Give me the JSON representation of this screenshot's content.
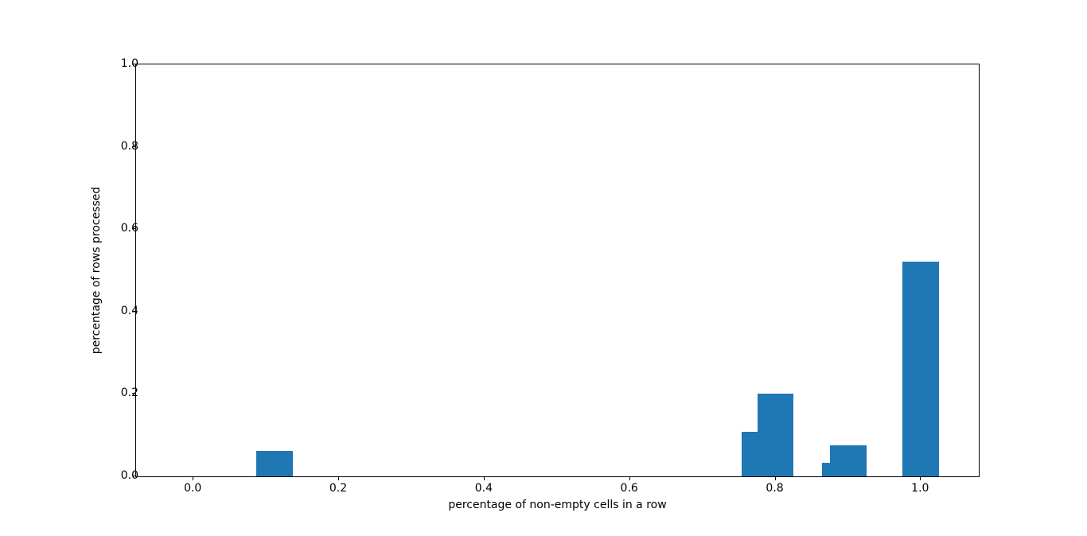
{
  "figure": {
    "background": "#ffffff"
  },
  "chart_data": {
    "type": "bar",
    "title": "",
    "xlabel": "percentage of non-empty cells in a row",
    "ylabel": "percentage of rows processed",
    "xlim": [
      -0.079,
      1.0795
    ],
    "ylim": [
      0.0,
      1.0
    ],
    "xticks": [
      0.0,
      0.2,
      0.4,
      0.6,
      0.8,
      1.0
    ],
    "yticks": [
      0.0,
      0.2,
      0.4,
      0.6,
      0.8,
      1.0
    ],
    "tick_label_decimals": 1,
    "grid": false,
    "legend": false,
    "bar_color": "#1f77b4",
    "bar_width": 0.05,
    "bars": [
      {
        "x": 0.111,
        "height": 0.061
      },
      {
        "x": 0.778,
        "height": 0.108
      },
      {
        "x": 0.8,
        "height": 0.2
      },
      {
        "x": 0.889,
        "height": 0.032
      },
      {
        "x": 0.9,
        "height": 0.075
      },
      {
        "x": 1.0,
        "height": 0.522
      }
    ]
  }
}
